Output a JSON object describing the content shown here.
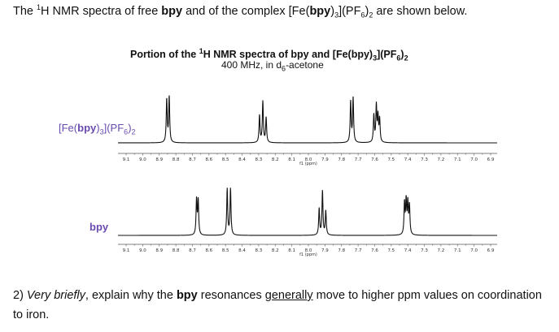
{
  "intro": {
    "a": "The ",
    "sup": "1",
    "b": "H NMR spectra of free ",
    "bpy": "bpy",
    "c": " and of the complex [Fe(",
    "bpy2": "bpy",
    "d": ")",
    "sub3": "3",
    "e": "](PF",
    "sub6": "6",
    "f": ")",
    "sub2": "2",
    "g": " are shown below."
  },
  "figure": {
    "title_a": "Portion of the ",
    "title_sup": "1",
    "title_b": "H NMR spectra of bpy and [Fe(bpy)",
    "title_sub3": "3",
    "title_c": "](PF",
    "title_sub6": "6",
    "title_d": ")",
    "title_sub2": "2",
    "subtitle_a": "400 MHz, in d",
    "subtitle_sub": "6",
    "subtitle_b": "-acetone"
  },
  "labels": {
    "complex_a": "[Fe(",
    "complex_bpy": "bpy",
    "complex_b": ")",
    "complex_sub3": "3",
    "complex_c": "](PF",
    "complex_sub6": "6",
    "complex_d": ")",
    "complex_sub2": "2",
    "free": "bpy"
  },
  "question": {
    "a": "2) ",
    "b": "Very briefly",
    "c": ", explain why the ",
    "d": "bpy",
    "e": " resonances ",
    "f": "generally",
    "g": " move to higher ppm values on coordination",
    "h": "to iron."
  },
  "chart_data": [
    {
      "type": "line",
      "name": "[Fe(bpy)3](PF6)2",
      "xlabel": "f1 (ppm)",
      "xlim": [
        9.1,
        6.9
      ],
      "ticks": [
        "9.1",
        "9.0",
        "8.9",
        "8.8",
        "8.7",
        "8.6",
        "8.5",
        "8.4",
        "8.3",
        "8.2",
        "8.1",
        "8.0",
        "7.9",
        "7.8",
        "7.7",
        "7.6",
        "7.5",
        "7.4",
        "7.3",
        "7.2",
        "7.1",
        "7.0",
        "6.9"
      ],
      "peaks": [
        {
          "ppm": 8.855,
          "h": 0.95
        },
        {
          "ppm": 8.84,
          "h": 1.0
        },
        {
          "ppm": 8.295,
          "h": 0.6
        },
        {
          "ppm": 8.275,
          "h": 0.9
        },
        {
          "ppm": 8.255,
          "h": 0.55
        },
        {
          "ppm": 7.745,
          "h": 0.9
        },
        {
          "ppm": 7.73,
          "h": 0.97
        },
        {
          "ppm": 7.605,
          "h": 0.6
        },
        {
          "ppm": 7.59,
          "h": 0.8
        },
        {
          "ppm": 7.58,
          "h": 0.55
        },
        {
          "ppm": 7.57,
          "h": 0.5
        }
      ]
    },
    {
      "type": "line",
      "name": "bpy",
      "xlabel": "f1 (ppm)",
      "xlim": [
        9.1,
        6.9
      ],
      "ticks": [
        "9.1",
        "9.0",
        "8.9",
        "8.8",
        "8.7",
        "8.6",
        "8.5",
        "8.4",
        "8.3",
        "8.2",
        "8.1",
        "8.0",
        "7.9",
        "7.8",
        "7.7",
        "7.6",
        "7.5",
        "7.4",
        "7.3",
        "7.2",
        "7.1",
        "7.0",
        "6.9"
      ],
      "peaks": [
        {
          "ppm": 8.675,
          "h": 0.8
        },
        {
          "ppm": 8.665,
          "h": 0.78
        },
        {
          "ppm": 8.49,
          "h": 1.05
        },
        {
          "ppm": 8.47,
          "h": 1.05
        },
        {
          "ppm": 7.935,
          "h": 0.6
        },
        {
          "ppm": 7.915,
          "h": 1.0
        },
        {
          "ppm": 7.895,
          "h": 0.55
        },
        {
          "ppm": 7.42,
          "h": 0.72
        },
        {
          "ppm": 7.41,
          "h": 0.75
        },
        {
          "ppm": 7.4,
          "h": 0.7
        },
        {
          "ppm": 7.39,
          "h": 0.65
        }
      ]
    }
  ]
}
